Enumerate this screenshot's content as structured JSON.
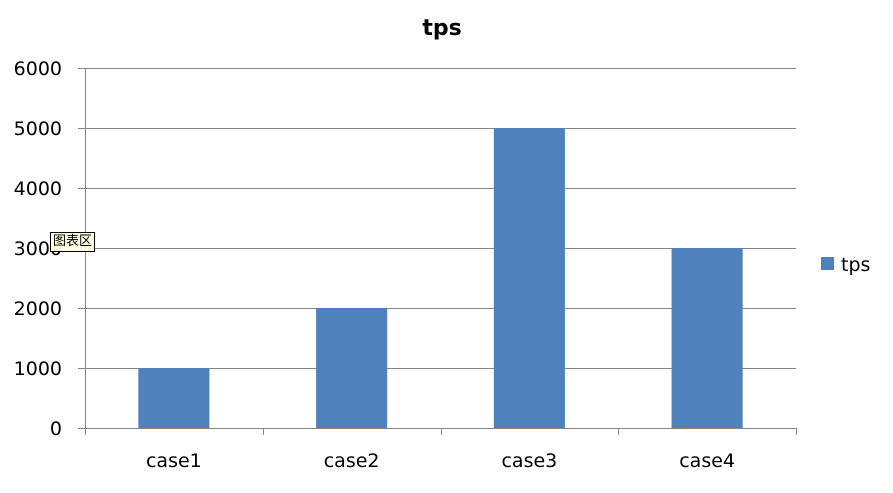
{
  "tooltip": "图表区",
  "colors": {
    "bar": "#4f81bd",
    "grid": "#868686",
    "text": "#000000"
  },
  "chart_data": {
    "type": "bar",
    "title": "tps",
    "categories": [
      "case1",
      "case2",
      "case3",
      "case4"
    ],
    "series": [
      {
        "name": "tps",
        "values": [
          1000,
          2000,
          5000,
          3000
        ]
      }
    ],
    "ylim": [
      0,
      6000
    ],
    "yticks": [
      0,
      1000,
      2000,
      3000,
      4000,
      5000,
      6000
    ],
    "xlabel": "",
    "ylabel": "",
    "grid": true,
    "legend": "right"
  }
}
